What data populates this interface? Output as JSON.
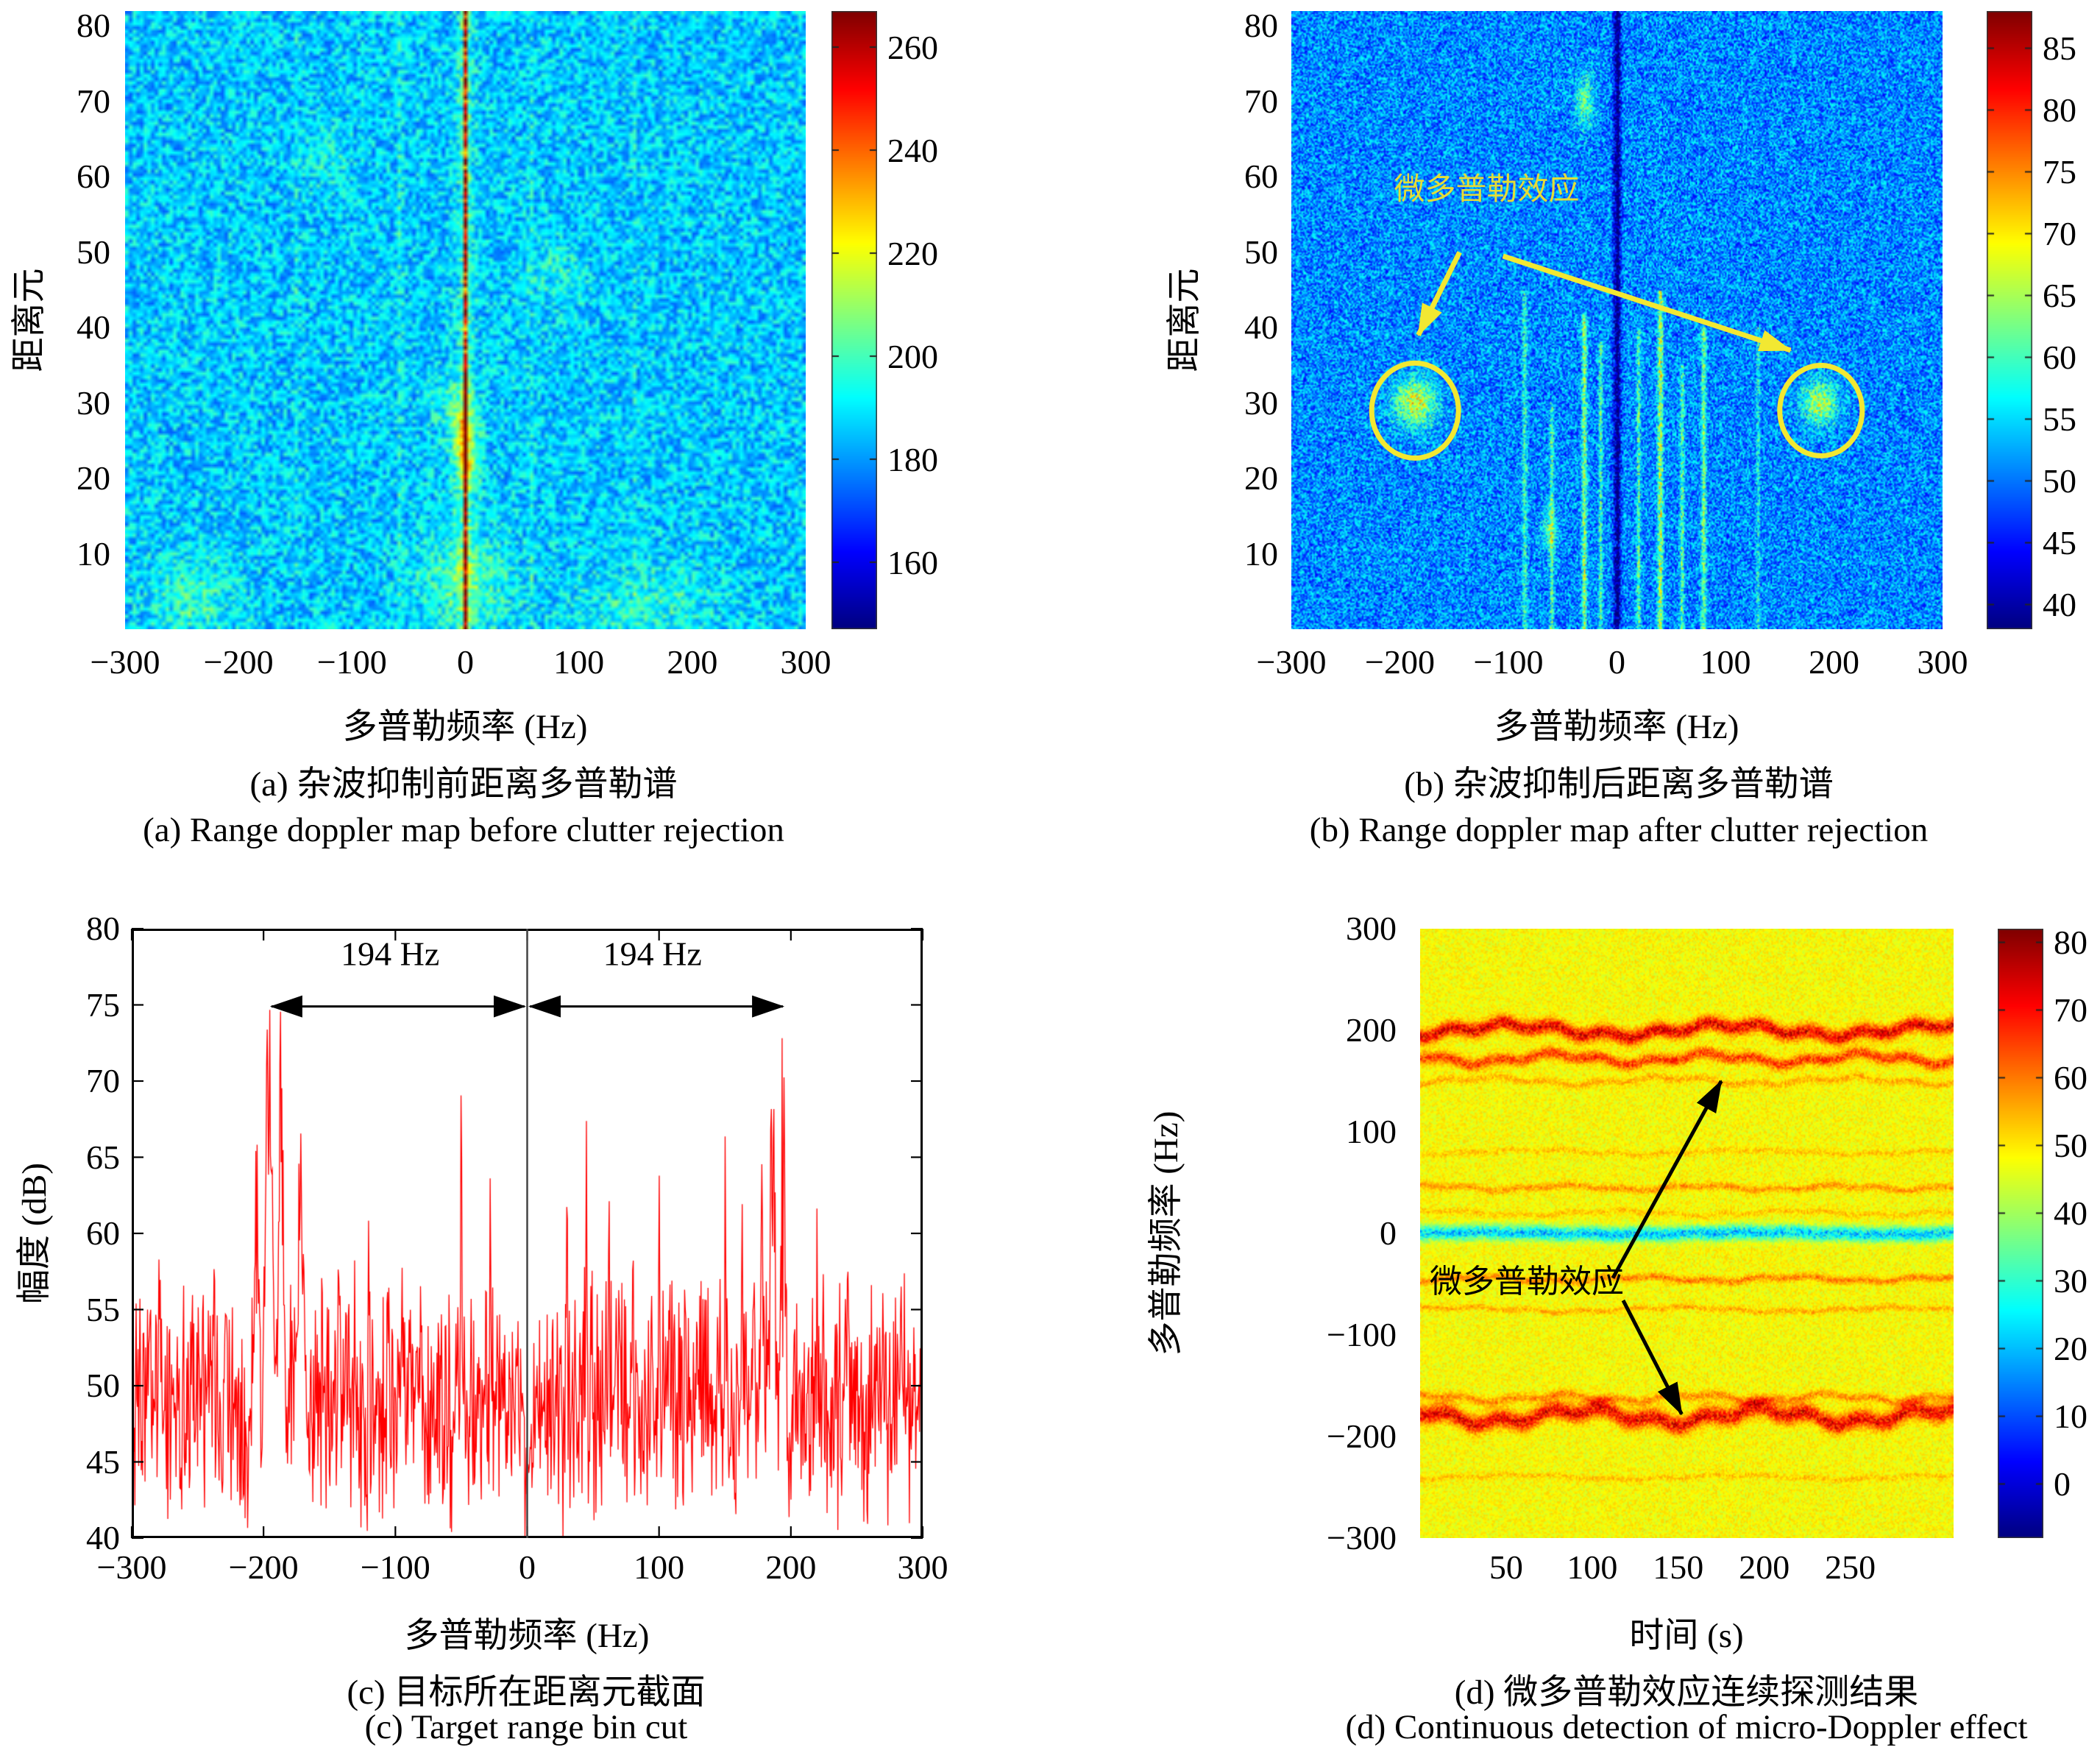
{
  "chart_data": [
    {
      "id": "a",
      "type": "heatmap",
      "caption_cn": "(a) 杂波抑制前距离多普勒谱",
      "caption_en": "(a) Range doppler map before clutter rejection",
      "xlabel": "多普勒频率 (Hz)",
      "ylabel": "距离元",
      "x_range": [
        -300,
        300
      ],
      "y_range": [
        0,
        82
      ],
      "x_ticks": [
        -300,
        -200,
        -100,
        0,
        100,
        200,
        300
      ],
      "y_ticks": [
        80,
        70,
        60,
        50,
        40,
        30,
        20,
        10
      ],
      "colormap": "jet",
      "grid": false,
      "colorbar": {
        "vmin": 147,
        "vmax": 267,
        "ticks": [
          260,
          240,
          220,
          200,
          180,
          160
        ]
      },
      "noise": {
        "seed": 7,
        "base": 186,
        "amp": 13,
        "cell": 5
      },
      "features": [
        {
          "type": "vband",
          "x": 0,
          "sigma": 1.3,
          "dv": 62
        },
        {
          "type": "vband",
          "x": 0,
          "sigma": 6,
          "dv": 10
        },
        {
          "type": "spot",
          "x": 0,
          "y": 24,
          "sx": 8,
          "sy": 4,
          "dv": 28
        },
        {
          "type": "spot",
          "x": 0,
          "y": 6,
          "sx": 30,
          "sy": 5,
          "dv": 14
        },
        {
          "type": "spot",
          "x": -15,
          "y": 30,
          "sx": 12,
          "sy": 3,
          "dv": 10
        },
        {
          "type": "vband",
          "x": -57,
          "sigma": 1,
          "dv": 16
        },
        {
          "type": "vband",
          "x": 57,
          "sigma": 1,
          "dv": 13
        },
        {
          "type": "vband",
          "x": -148,
          "sigma": 0.9,
          "dv": 11
        },
        {
          "type": "vband",
          "x": 148,
          "sigma": 0.9,
          "dv": 10
        },
        {
          "type": "spot",
          "x": -240,
          "y": 4,
          "sx": 28,
          "sy": 4,
          "dv": 12
        },
        {
          "type": "spot",
          "x": 160,
          "y": 3,
          "sx": 45,
          "sy": 4,
          "dv": 10
        },
        {
          "type": "spot",
          "x": 80,
          "y": 47,
          "sx": 18,
          "sy": 3,
          "dv": 8
        },
        {
          "type": "spot",
          "x": -120,
          "y": 62,
          "sx": 15,
          "sy": 3,
          "dv": 7
        }
      ],
      "annotations": []
    },
    {
      "id": "b",
      "type": "heatmap",
      "caption_cn": "(b) 杂波抑制后距离多普勒谱",
      "caption_en": "(b) Range doppler map after clutter rejection",
      "xlabel": "多普勒频率 (Hz)",
      "ylabel": "距离元",
      "x_range": [
        -300,
        300
      ],
      "y_range": [
        0,
        82
      ],
      "x_ticks": [
        -300,
        -200,
        -100,
        0,
        100,
        200,
        300
      ],
      "y_ticks": [
        80,
        70,
        60,
        50,
        40,
        30,
        20,
        10
      ],
      "colormap": "jet",
      "grid": false,
      "colorbar": {
        "vmin": 38,
        "vmax": 88,
        "ticks": [
          85,
          80,
          75,
          70,
          65,
          60,
          55,
          50,
          45,
          40
        ]
      },
      "noise": {
        "seed": 11,
        "base": 51,
        "amp": 7,
        "cell": 2
      },
      "features": [
        {
          "type": "vband",
          "x": 0,
          "sigma": 2.6,
          "dv": -11
        },
        {
          "type": "vband",
          "x": 1,
          "sigma": 0.9,
          "dv": -5
        },
        {
          "type": "vband",
          "x": -30,
          "sigma": 1.6,
          "dv": 13,
          "y_max": 42
        },
        {
          "type": "vband",
          "x": -15,
          "sigma": 1.2,
          "dv": 9,
          "y_max": 38
        },
        {
          "type": "vband",
          "x": -60,
          "sigma": 1.4,
          "dv": 9,
          "y_max": 30
        },
        {
          "type": "vband",
          "x": -85,
          "sigma": 1.6,
          "dv": 8,
          "y_max": 45
        },
        {
          "type": "vband",
          "x": 20,
          "sigma": 1.3,
          "dv": 9,
          "y_max": 40
        },
        {
          "type": "vband",
          "x": 40,
          "sigma": 1.8,
          "dv": 14,
          "y_max": 45
        },
        {
          "type": "vband",
          "x": 60,
          "sigma": 1.3,
          "dv": 10,
          "y_max": 35
        },
        {
          "type": "vband",
          "x": 80,
          "sigma": 1.6,
          "dv": 11,
          "y_max": 40
        },
        {
          "type": "vband",
          "x": 130,
          "sigma": 1.2,
          "dv": 6,
          "y_max": 40
        },
        {
          "type": "spot",
          "x": -186,
          "y": 30,
          "sx": 13,
          "sy": 2.2,
          "dv": 17
        },
        {
          "type": "spot",
          "x": 187,
          "y": 30,
          "sx": 11,
          "sy": 2,
          "dv": 15
        },
        {
          "type": "spot",
          "x": -30,
          "y": 70,
          "sx": 6,
          "sy": 2.5,
          "dv": 10
        },
        {
          "type": "spot",
          "x": -62,
          "y": 13,
          "sx": 5,
          "sy": 2,
          "dv": 8
        }
      ],
      "annotations": [
        {
          "type": "text",
          "x": -120,
          "y": 57,
          "label": "微多普勒效应",
          "color": "#e4dc38",
          "size": 42
        },
        {
          "type": "arrow",
          "x1": -145,
          "y1": 50,
          "x2": -183,
          "y2": 39,
          "color": "#f2e832",
          "width": 7
        },
        {
          "type": "arrow",
          "x1": -105,
          "y1": 49.5,
          "x2": 160,
          "y2": 37,
          "color": "#f2e832",
          "width": 7
        },
        {
          "type": "ellipse",
          "cx": -186,
          "cy": 29,
          "rx": 40,
          "ry": 6.3,
          "color": "#f2e832",
          "width": 7
        },
        {
          "type": "ellipse",
          "cx": 188,
          "cy": 29,
          "rx": 38,
          "ry": 6,
          "color": "#f2e832",
          "width": 7
        }
      ]
    },
    {
      "id": "c",
      "type": "line",
      "caption_cn": "(c) 目标所在距离元截面",
      "caption_en": "(c) Target range bin cut",
      "xlabel": "多普勒频率 (Hz)",
      "ylabel": "幅度 (dB)",
      "x_range": [
        -300,
        300
      ],
      "y_range": [
        40,
        80
      ],
      "x_ticks": [
        -300,
        -200,
        -100,
        0,
        100,
        200,
        300
      ],
      "y_ticks": [
        80,
        75,
        70,
        65,
        60,
        55,
        50,
        45,
        40
      ],
      "line_color": "#ff0000",
      "grid": false,
      "gen": {
        "seed": 3,
        "n": 1250,
        "floor_center": 49,
        "floor_spread": 9.5,
        "notch": {
          "x": 0,
          "width": 7,
          "min": 40
        },
        "clamp": [
          40,
          79.6
        ],
        "peaks": [
          {
            "x": -196,
            "amp": 78,
            "sigma": 5
          },
          {
            "x": -187,
            "amp": 76,
            "sigma": 4
          },
          {
            "x": -205,
            "amp": 70,
            "sigma": 3
          },
          {
            "x": -172,
            "amp": 68,
            "sigma": 5
          },
          {
            "x": 194,
            "amp": 76.5,
            "sigma": 2.5
          },
          {
            "x": 186,
            "amp": 72,
            "sigma": 4
          },
          {
            "x": 178,
            "amp": 66,
            "sigma": 3
          },
          {
            "x": -120,
            "amp": 75,
            "sigma": 1
          },
          {
            "x": -50,
            "amp": 74.8,
            "sigma": 0.9
          },
          {
            "x": -143,
            "amp": 64,
            "sigma": 1.2
          },
          {
            "x": -95,
            "amp": 62,
            "sigma": 1
          },
          {
            "x": -28,
            "amp": 66,
            "sigma": 0.9
          },
          {
            "x": 30,
            "amp": 72,
            "sigma": 0.9
          },
          {
            "x": 45,
            "amp": 70,
            "sigma": 1
          },
          {
            "x": 62,
            "amp": 70.5,
            "sigma": 0.9
          },
          {
            "x": 80,
            "amp": 69,
            "sigma": 0.8
          },
          {
            "x": 100,
            "amp": 71,
            "sigma": 0.9
          },
          {
            "x": 120,
            "amp": 65,
            "sigma": 1
          },
          {
            "x": 150,
            "amp": 68,
            "sigma": 1
          },
          {
            "x": 163,
            "amp": 65,
            "sigma": 1
          },
          {
            "x": 220,
            "amp": 64,
            "sigma": 1
          },
          {
            "x": 243,
            "amp": 62,
            "sigma": 1
          },
          {
            "x": -240,
            "amp": 60,
            "sigma": 1
          },
          {
            "x": -265,
            "amp": 58,
            "sigma": 1
          },
          {
            "x": 270,
            "amp": 60,
            "sigma": 1
          }
        ]
      },
      "annotations": [
        {
          "type": "vline",
          "x": 0,
          "color": "#444",
          "width": 2.5
        },
        {
          "type": "dblarrow",
          "x1": -194,
          "x2": -2,
          "y": 74.9,
          "color": "#000",
          "width": 3
        },
        {
          "type": "dblarrow",
          "x1": 2,
          "x2": 194,
          "y": 74.9,
          "color": "#000",
          "width": 3
        },
        {
          "type": "text",
          "x": -104,
          "y": 77.6,
          "label": "194 Hz",
          "color": "#000",
          "size": 46
        },
        {
          "type": "text",
          "x": 95,
          "y": 77.6,
          "label": "194 Hz",
          "color": "#000",
          "size": 46
        }
      ]
    },
    {
      "id": "d",
      "type": "heatmap",
      "caption_cn": "(d) 微多普勒效应连续探测结果",
      "caption_en": "(d) Continuous detection of micro-Doppler effect",
      "xlabel": "时间 (s)",
      "ylabel": "多普勒频率 (Hz)",
      "x_range": [
        0,
        310
      ],
      "y_range": [
        -300,
        300
      ],
      "x_ticks": [
        50,
        100,
        150,
        200,
        250
      ],
      "y_ticks": [
        300,
        200,
        100,
        0,
        -100,
        -200,
        -300
      ],
      "colormap": "jet",
      "grid": false,
      "colorbar": {
        "vmin": -8,
        "vmax": 82,
        "ticks": [
          80,
          70,
          60,
          50,
          40,
          30,
          20,
          10,
          0
        ]
      },
      "noise": {
        "seed": 5,
        "base": 48,
        "amp": 4.5,
        "cell": 2
      },
      "features": [
        {
          "type": "hband",
          "y": 200,
          "sigma": 5,
          "dv": 24,
          "wobble": 5,
          "wfreq": 0.05
        },
        {
          "type": "hband",
          "y": 172,
          "sigma": 4,
          "dv": 17,
          "wobble": 4,
          "wfreq": 0.07
        },
        {
          "type": "hband",
          "y": 150,
          "sigma": 2.5,
          "dv": 7,
          "wobble": 3,
          "wfreq": 0.06
        },
        {
          "type": "hband",
          "y": 80,
          "sigma": 2,
          "dv": 5,
          "wobble": 2,
          "wfreq": 0.05
        },
        {
          "type": "hband",
          "y": 45,
          "sigma": 2.5,
          "dv": 9,
          "wobble": 2,
          "wfreq": 0.08
        },
        {
          "type": "hband",
          "y": 20,
          "sigma": 2,
          "dv": 5,
          "wobble": 2,
          "wfreq": 0.06
        },
        {
          "type": "hband",
          "y": 0,
          "sigma": 5,
          "dv": -26,
          "wobble": 1,
          "wfreq": 0.04
        },
        {
          "type": "hband",
          "y": -45,
          "sigma": 2.5,
          "dv": 11,
          "wobble": 2,
          "wfreq": 0.07
        },
        {
          "type": "hband",
          "y": -75,
          "sigma": 2,
          "dv": 7,
          "wobble": 2,
          "wfreq": 0.05
        },
        {
          "type": "hband",
          "y": -180,
          "sigma": 6,
          "dv": 23,
          "wobble": 6,
          "wfreq": 0.06
        },
        {
          "type": "hband",
          "y": -162,
          "sigma": 3,
          "dv": 10,
          "wobble": 3,
          "wfreq": 0.08
        },
        {
          "type": "hband",
          "y": -240,
          "sigma": 2,
          "dv": 5,
          "wobble": 2,
          "wfreq": 0.05
        }
      ],
      "annotations": [
        {
          "type": "text",
          "x": 62,
          "y": -58,
          "label": "微多普勒效应",
          "color": "#000000",
          "size": 44
        },
        {
          "type": "arrow",
          "x1": 112,
          "y1": -44,
          "x2": 175,
          "y2": 150,
          "color": "#000000",
          "width": 5
        },
        {
          "type": "arrow",
          "x1": 118,
          "y1": -66,
          "x2": 152,
          "y2": -178,
          "color": "#000000",
          "width": 5
        }
      ]
    }
  ]
}
